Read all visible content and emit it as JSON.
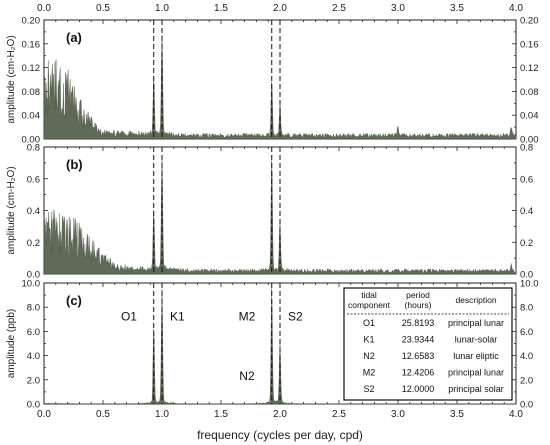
{
  "figure": {
    "xlabel": "frequency (cycles per day, cpd)",
    "top_ticks": [
      "0.0",
      "0.5",
      "1.0",
      "1.5",
      "2.0",
      "2.5",
      "3.0",
      "3.5",
      "4.0"
    ],
    "dashed_lines_cpd": [
      0.93,
      1.0,
      1.93,
      2.0
    ]
  },
  "chart_data": [
    {
      "type": "area",
      "panel": "(a)",
      "ylabel": "amplitude (cm-H₂O)",
      "xlim": [
        0,
        4
      ],
      "ylim": [
        0,
        0.2
      ],
      "yticks": [
        "0.00",
        "0.04",
        "0.08",
        "0.12",
        "0.16",
        "0.20"
      ],
      "right_yticks": [
        "0.00",
        "0.04",
        "0.08",
        "0.12",
        "0.16",
        "0.20"
      ],
      "xticks": [],
      "spectrum": {
        "low_freq_peak": {
          "x": 0.1,
          "y": 0.13
        },
        "low_freq_extent": 0.45,
        "floor": 0.006,
        "peaks": [
          {
            "x": 0.93,
            "y": 0.092
          },
          {
            "x": 1.0,
            "y": 0.158
          },
          {
            "x": 1.93,
            "y": 0.093
          },
          {
            "x": 2.0,
            "y": 0.052
          },
          {
            "x": 3.0,
            "y": 0.016
          },
          {
            "x": 3.96,
            "y": 0.012
          }
        ]
      }
    },
    {
      "type": "area",
      "panel": "(b)",
      "ylabel": "amplitude (cm-H₂O)",
      "xlim": [
        0,
        4
      ],
      "ylim": [
        0,
        0.8
      ],
      "yticks": [
        "0.0",
        "0.2",
        "0.4",
        "0.6",
        "0.8"
      ],
      "right_yticks": [
        "0.0",
        "0.2",
        "0.4",
        "0.6",
        "0.8"
      ],
      "xticks": [],
      "spectrum": {
        "low_freq_peak": {
          "x": 0.13,
          "y": 0.37
        },
        "low_freq_extent": 0.6,
        "floor": 0.02,
        "peaks": [
          {
            "x": 0.93,
            "y": 0.36
          },
          {
            "x": 1.0,
            "y": 0.71
          },
          {
            "x": 1.93,
            "y": 0.7
          },
          {
            "x": 2.0,
            "y": 0.3
          },
          {
            "x": 3.96,
            "y": 0.04
          }
        ]
      }
    },
    {
      "type": "area",
      "panel": "(c)",
      "ylabel": "amplitude (ppb)",
      "xlim": [
        0,
        4
      ],
      "ylim": [
        0,
        10
      ],
      "yticks": [
        "0.0",
        "2.0",
        "4.0",
        "6.0",
        "8.0",
        "10.0"
      ],
      "right_yticks": [
        "0.0",
        "2.0",
        "4.0",
        "6.0",
        "8.0",
        "10.0"
      ],
      "xticks": [
        "0.0",
        "0.5",
        "1.0",
        "1.5",
        "2.0",
        "2.5",
        "3.0",
        "3.5",
        "4.0"
      ],
      "spectrum": {
        "low_freq_peak": {
          "x": 0.05,
          "y": 0.05
        },
        "low_freq_extent": 0.1,
        "floor": 0.02,
        "peaks": [
          {
            "x": 0.93,
            "y": 6.2
          },
          {
            "x": 1.0,
            "y": 9.1
          },
          {
            "x": 1.93,
            "y": 9.3
          },
          {
            "x": 2.0,
            "y": 4.8
          }
        ]
      },
      "annotations": [
        {
          "text": "O1",
          "x": 0.72,
          "y": 6.9
        },
        {
          "text": "K1",
          "x": 1.13,
          "y": 6.9
        },
        {
          "text": "M2",
          "x": 1.72,
          "y": 6.9
        },
        {
          "text": "S2",
          "x": 2.13,
          "y": 6.9
        },
        {
          "text": "N2",
          "x": 1.72,
          "y": 2.0
        }
      ],
      "table": {
        "headers": [
          "tidal component",
          "period (hours)",
          "description"
        ],
        "rows": [
          [
            "O1",
            "25.8193",
            "principal lunar"
          ],
          [
            "K1",
            "23.9344",
            "lunar-solar"
          ],
          [
            "N2",
            "12.6583",
            "lunar eliptic"
          ],
          [
            "M2",
            "12.4206",
            "principal lunar"
          ],
          [
            "S2",
            "12.0000",
            "principal solar"
          ]
        ]
      }
    }
  ]
}
